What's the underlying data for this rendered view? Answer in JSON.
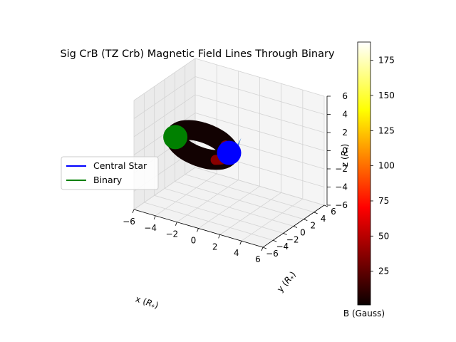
{
  "chart_data": {
    "type": "line",
    "projection": "3d",
    "title": "Sig CrB (TZ Crb) Magnetic Field Lines Through Binary",
    "xlabel": "x ($R_*$)",
    "ylabel": "y ($R_*$)",
    "zlabel": "z ($R_*$)",
    "xlim": [
      -6,
      6
    ],
    "ylim": [
      -6,
      6
    ],
    "zlim": [
      -6,
      6
    ],
    "x_ticks": [
      "−6",
      "−4",
      "−2",
      "0",
      "2",
      "4",
      "6"
    ],
    "y_ticks": [
      "−6",
      "−4",
      "−2",
      "0",
      "2",
      "4",
      "6"
    ],
    "z_ticks": [
      "−6",
      "−4",
      "−2",
      "0",
      "2",
      "4",
      "6"
    ],
    "grid": true,
    "legend": {
      "placement": "center-left",
      "entries": [
        {
          "label": "Central Star",
          "color": "#0000ff"
        },
        {
          "label": "Binary",
          "color": "#008000"
        }
      ]
    },
    "bodies": [
      {
        "name": "Central Star",
        "x": 0,
        "y": 0,
        "z": 0,
        "color": "#0000ff"
      },
      {
        "name": "Binary",
        "x": -5,
        "y": 0,
        "z": 0,
        "color": "#008000"
      }
    ],
    "field_loop": {
      "center_x": -2.5,
      "center_y": 0,
      "center_z": 0,
      "radius_x": 2.5,
      "radius_z": 1.4,
      "colormap": "hot"
    },
    "colorbar": {
      "label": "B (Gauss)",
      "range": [
        1,
        188
      ],
      "ticks": [
        "25",
        "50",
        "75",
        "100",
        "125",
        "150",
        "175"
      ],
      "tick_values": [
        25,
        50,
        75,
        100,
        125,
        150,
        175
      ],
      "colormap": "hot"
    }
  }
}
